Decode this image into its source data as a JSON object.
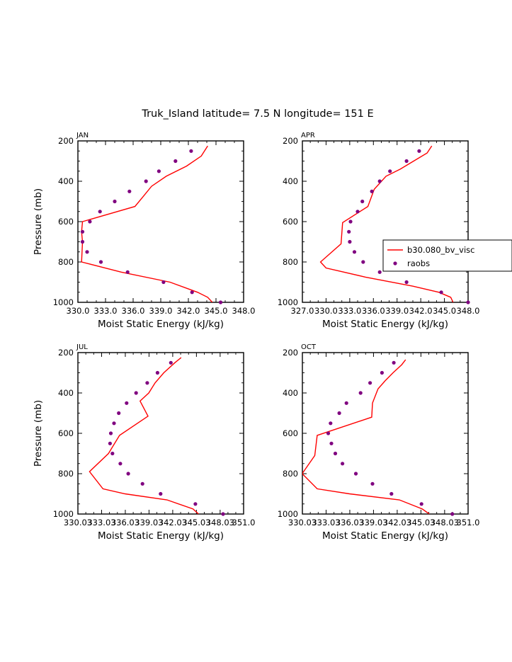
{
  "suptitle": "Truk_Island  latitude= 7.5 N longitude= 151 E",
  "colors": {
    "model": "#ff0000",
    "obs": "#800080",
    "axes": "#000000"
  },
  "legend": {
    "model_label": "b30.080_bv_visc",
    "obs_label": "raobs"
  },
  "chart_data": [
    {
      "type": "line",
      "title": "JAN",
      "xlabel": "Moist Static Energy (kJ/kg)",
      "ylabel": "Pressure (mb)",
      "xlim": [
        330.0,
        348.0
      ],
      "ylim": [
        1000,
        200
      ],
      "xticks": [
        330,
        333,
        336,
        339,
        342,
        345,
        348
      ],
      "xtick_labels": [
        "330.0",
        "333.0",
        "336.0",
        "339.0",
        "342.0",
        "345.0",
        "348.0"
      ],
      "yticks": [
        200,
        400,
        600,
        800,
        1000
      ],
      "ytick_labels": [
        "200",
        "400",
        "600",
        "800",
        "1000"
      ],
      "series": [
        {
          "name": "b30.080_bv_visc",
          "style": "line",
          "points": [
            [
              344.6,
              1000
            ],
            [
              344.1,
              975
            ],
            [
              343.0,
              950
            ],
            [
              340.0,
              900
            ],
            [
              334.7,
              850
            ],
            [
              330.4,
              800
            ],
            [
              330.5,
              700
            ],
            [
              330.4,
              650
            ],
            [
              330.5,
              600
            ],
            [
              336.2,
              525
            ],
            [
              337.1,
              475
            ],
            [
              338.0,
              425
            ],
            [
              339.6,
              375
            ],
            [
              341.8,
              325
            ],
            [
              343.4,
              275
            ],
            [
              344.1,
              225
            ]
          ]
        },
        {
          "name": "raobs",
          "style": "markers",
          "points": [
            [
              345.5,
              1000
            ],
            [
              342.4,
              950
            ],
            [
              339.3,
              900
            ],
            [
              335.4,
              850
            ],
            [
              332.5,
              800
            ],
            [
              331.0,
              750
            ],
            [
              330.5,
              700
            ],
            [
              330.5,
              650
            ],
            [
              331.3,
              600
            ],
            [
              332.4,
              550
            ],
            [
              334.0,
              500
            ],
            [
              335.6,
              450
            ],
            [
              337.4,
              400
            ],
            [
              338.8,
              350
            ],
            [
              340.6,
              300
            ],
            [
              342.3,
              250
            ]
          ]
        }
      ]
    },
    {
      "type": "line",
      "title": "APR",
      "xlabel": "Moist Static Energy (kJ/kg)",
      "ylabel": "",
      "xlim": [
        327.0,
        348.0
      ],
      "ylim": [
        1000,
        200
      ],
      "xticks": [
        327,
        330,
        333,
        336,
        339,
        342,
        345,
        348
      ],
      "xtick_labels": [
        "327.0",
        "330.0",
        "333.0",
        "336.0",
        "339.0",
        "342.0",
        "345.0",
        "348.0"
      ],
      "yticks": [
        200,
        400,
        600,
        800,
        1000
      ],
      "ytick_labels": [
        "200",
        "400",
        "600",
        "800",
        "1000"
      ],
      "series": [
        {
          "name": "b30.080_bv_visc",
          "style": "line",
          "points": [
            [
              346.1,
              1000
            ],
            [
              345.8,
              975
            ],
            [
              344.3,
              950
            ],
            [
              341.0,
              920
            ],
            [
              335.0,
              875
            ],
            [
              330.0,
              830
            ],
            [
              329.3,
              800
            ],
            [
              331.9,
              710
            ],
            [
              332.1,
              605
            ],
            [
              335.3,
              525
            ],
            [
              336.1,
              440
            ],
            [
              337.6,
              375
            ],
            [
              339.4,
              340
            ],
            [
              341.1,
              300
            ],
            [
              342.8,
              260
            ],
            [
              343.4,
              225
            ]
          ]
        },
        {
          "name": "raobs",
          "style": "markers",
          "points": [
            [
              348.0,
              1000
            ],
            [
              344.6,
              950
            ],
            [
              340.2,
              900
            ],
            [
              336.8,
              850
            ],
            [
              334.7,
              800
            ],
            [
              333.6,
              750
            ],
            [
              333.0,
              700
            ],
            [
              332.9,
              650
            ],
            [
              333.1,
              600
            ],
            [
              334.0,
              550
            ],
            [
              334.6,
              500
            ],
            [
              335.8,
              450
            ],
            [
              336.8,
              400
            ],
            [
              338.1,
              350
            ],
            [
              340.2,
              300
            ],
            [
              341.8,
              250
            ]
          ]
        }
      ]
    },
    {
      "type": "line",
      "title": "JUL",
      "xlabel": "Moist Static Energy (kJ/kg)",
      "ylabel": "Pressure (mb)",
      "xlim": [
        330.03,
        351.0
      ],
      "ylim": [
        1000,
        200
      ],
      "xticks": [
        330.03,
        333.03,
        336.03,
        339.03,
        342.03,
        345.03,
        348.03,
        351.0
      ],
      "xtick_labels": [
        "330.03",
        "333.03",
        "336.03",
        "339.03",
        "342.03",
        "345.03",
        "348.03",
        "351.0"
      ],
      "yticks": [
        200,
        400,
        600,
        800,
        1000
      ],
      "ytick_labels": [
        "200",
        "400",
        "600",
        "800",
        "1000"
      ],
      "series": [
        {
          "name": "b30.080_bv_visc",
          "style": "line",
          "points": [
            [
              345.3,
              1000
            ],
            [
              344.6,
              975
            ],
            [
              341.3,
              930
            ],
            [
              336.0,
              900
            ],
            [
              333.2,
              875
            ],
            [
              331.5,
              790
            ],
            [
              333.9,
              700
            ],
            [
              335.3,
              610
            ],
            [
              338.9,
              515
            ],
            [
              337.9,
              440
            ],
            [
              339.0,
              400
            ],
            [
              339.8,
              350
            ],
            [
              340.9,
              300
            ],
            [
              342.3,
              250
            ],
            [
              343.1,
              225
            ]
          ]
        },
        {
          "name": "raobs",
          "style": "markers",
          "points": [
            [
              348.4,
              1000
            ],
            [
              344.9,
              950
            ],
            [
              340.5,
              900
            ],
            [
              338.2,
              850
            ],
            [
              336.4,
              800
            ],
            [
              335.4,
              750
            ],
            [
              334.4,
              700
            ],
            [
              334.1,
              650
            ],
            [
              334.2,
              600
            ],
            [
              334.6,
              550
            ],
            [
              335.2,
              500
            ],
            [
              336.2,
              450
            ],
            [
              337.4,
              400
            ],
            [
              338.8,
              350
            ],
            [
              340.1,
              300
            ],
            [
              341.8,
              250
            ]
          ]
        }
      ]
    },
    {
      "type": "line",
      "title": "OCT",
      "xlabel": "Moist Static Energy (kJ/kg)",
      "ylabel": "",
      "xlim": [
        330.03,
        351.0
      ],
      "ylim": [
        1000,
        200
      ],
      "xticks": [
        330.03,
        333.03,
        336.03,
        339.03,
        342.03,
        345.03,
        348.03,
        351.0
      ],
      "xtick_labels": [
        "330.03",
        "333.03",
        "336.03",
        "339.03",
        "342.03",
        "345.03",
        "348.03",
        "351.0"
      ],
      "yticks": [
        200,
        400,
        600,
        800,
        1000
      ],
      "ytick_labels": [
        "200",
        "400",
        "600",
        "800",
        "1000"
      ],
      "series": [
        {
          "name": "b30.080_bv_visc",
          "style": "line",
          "points": [
            [
              346.1,
              1000
            ],
            [
              345.2,
              975
            ],
            [
              342.3,
              930
            ],
            [
              336.0,
              900
            ],
            [
              331.9,
              875
            ],
            [
              330.0,
              800
            ],
            [
              331.6,
              710
            ],
            [
              331.9,
              610
            ],
            [
              338.8,
              520
            ],
            [
              338.9,
              450
            ],
            [
              339.6,
              380
            ],
            [
              340.5,
              340
            ],
            [
              341.5,
              300
            ],
            [
              342.6,
              260
            ],
            [
              343.1,
              235
            ]
          ]
        },
        {
          "name": "raobs",
          "style": "markers",
          "points": [
            [
              349.0,
              1000
            ],
            [
              345.1,
              950
            ],
            [
              341.3,
              900
            ],
            [
              338.9,
              850
            ],
            [
              336.8,
              800
            ],
            [
              335.1,
              750
            ],
            [
              334.2,
              700
            ],
            [
              333.7,
              650
            ],
            [
              333.3,
              600
            ],
            [
              333.6,
              550
            ],
            [
              334.7,
              500
            ],
            [
              335.6,
              450
            ],
            [
              337.4,
              400
            ],
            [
              338.6,
              350
            ],
            [
              340.1,
              300
            ],
            [
              341.6,
              250
            ]
          ]
        }
      ]
    }
  ]
}
